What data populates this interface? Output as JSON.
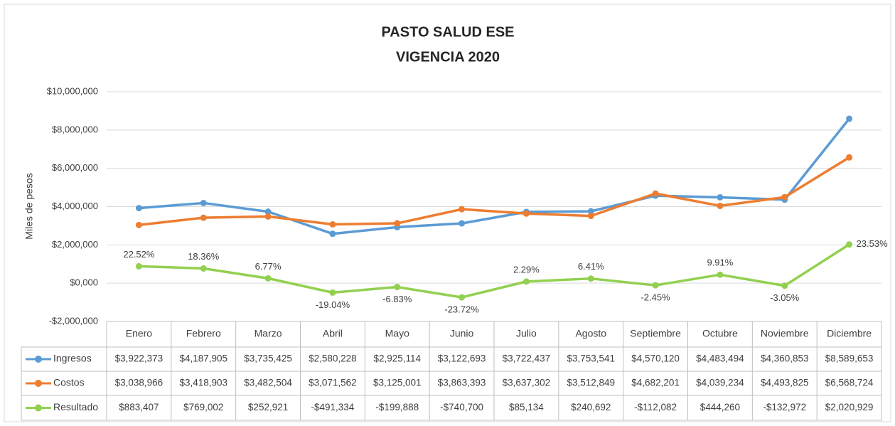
{
  "chart_data": {
    "type": "line",
    "title": "PASTO SALUD ESE",
    "subtitle": "VIGENCIA 2020",
    "y_label": "Miles de pesos",
    "categories": [
      "Enero",
      "Febrero",
      "Marzo",
      "Abril",
      "Mayo",
      "Junio",
      "Julio",
      "Agosto",
      "Septiembre",
      "Octubre",
      "Noviembre",
      "Diciembre"
    ],
    "series": [
      {
        "name": "Ingresos",
        "color": "#5b9bd5",
        "values": [
          3922373,
          4187905,
          3735425,
          2580228,
          2925114,
          3122693,
          3722437,
          3753541,
          4570120,
          4483494,
          4360853,
          8589653
        ],
        "value_labels": [
          "$3,922,373",
          "$4,187,905",
          "$3,735,425",
          "$2,580,228",
          "$2,925,114",
          "$3,122,693",
          "$3,722,437",
          "$3,753,541",
          "$4,570,120",
          "$4,483,494",
          "$4,360,853",
          "$8,589,653"
        ]
      },
      {
        "name": "Costos",
        "color": "#ed7d31",
        "values": [
          3038966,
          3418903,
          3482504,
          3071562,
          3125001,
          3863393,
          3637302,
          3512849,
          4682201,
          4039234,
          4493825,
          6568724
        ],
        "value_labels": [
          "$3,038,966",
          "$3,418,903",
          "$3,482,504",
          "$3,071,562",
          "$3,125,001",
          "$3,863,393",
          "$3,637,302",
          "$3,512,849",
          "$4,682,201",
          "$4,039,234",
          "$4,493,825",
          "$6,568,724"
        ]
      },
      {
        "name": "Resultado",
        "color": "#92d050",
        "values": [
          883407,
          769002,
          252921,
          -491334,
          -199888,
          -740700,
          85134,
          240692,
          -112082,
          444260,
          -132972,
          2020929
        ],
        "value_labels": [
          "$883,407",
          "$769,002",
          "$252,921",
          "-$491,334",
          "-$199,888",
          "-$740,700",
          "$85,134",
          "$240,692",
          "-$112,082",
          "$444,260",
          "-$132,972",
          "$2,020,929"
        ]
      }
    ],
    "annotations": [
      "22.52%",
      "18.36%",
      "6.77%",
      "-19.04%",
      "-6.83%",
      "-23.72%",
      "2.29%",
      "6.41%",
      "-2.45%",
      "9.91%",
      "-3.05%",
      "23.53%"
    ],
    "ylim": [
      -2000000,
      10000000
    ],
    "yticks": [
      {
        "value": -2000000,
        "label": "-$2,000,000"
      },
      {
        "value": 0,
        "label": "$0,000"
      },
      {
        "value": 2000000,
        "label": "$2,000,000"
      },
      {
        "value": 4000000,
        "label": "$4,000,000"
      },
      {
        "value": 6000000,
        "label": "$6,000,000"
      },
      {
        "value": 8000000,
        "label": "$8,000,000"
      },
      {
        "value": 10000000,
        "label": "$10,000,000"
      }
    ],
    "grid": true
  }
}
